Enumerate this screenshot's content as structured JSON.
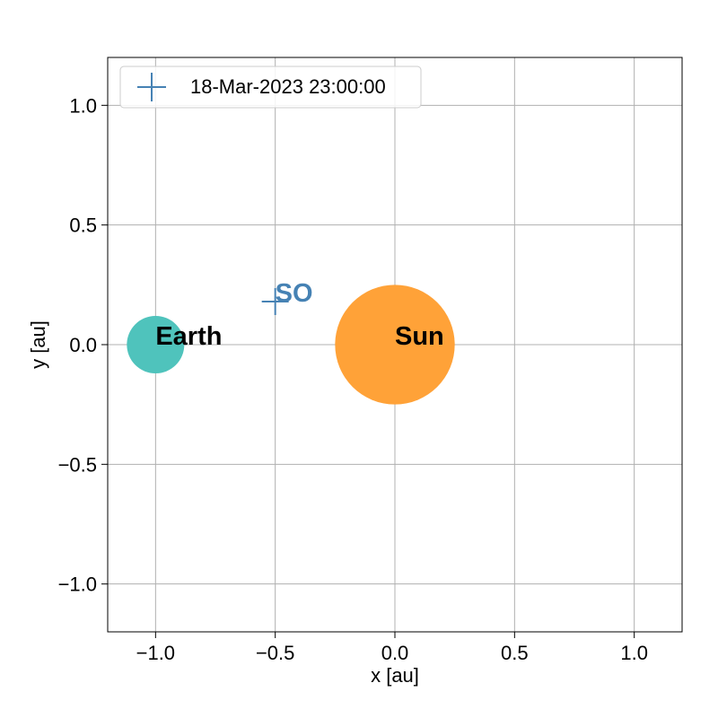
{
  "chart_data": {
    "type": "scatter",
    "xlabel": "x [au]",
    "ylabel": "y [au]",
    "xlim": [
      -1.2,
      1.2
    ],
    "ylim": [
      -1.2,
      1.2
    ],
    "xticks": [
      -1.0,
      -0.5,
      0.0,
      0.5,
      1.0
    ],
    "yticks": [
      -1.0,
      -0.5,
      0.0,
      0.5,
      1.0
    ],
    "xtick_labels": [
      "−1.0",
      "−0.5",
      "0.0",
      "0.5",
      "1.0"
    ],
    "ytick_labels": [
      "−1.0",
      "−0.5",
      "0.0",
      "0.5",
      "1.0"
    ],
    "grid": true,
    "legend": {
      "location": "upper left",
      "entries": [
        "18-Mar-2023 23:00:00"
      ]
    },
    "bodies": [
      {
        "name": "Sun",
        "x": 0.0,
        "y": 0.0,
        "radius": 0.25,
        "color": "#ffa238"
      },
      {
        "name": "Earth",
        "x": -1.0,
        "y": 0.0,
        "radius": 0.12,
        "color": "#4fc3bc"
      }
    ],
    "series": [
      {
        "name": "18-Mar-2023 23:00:00",
        "marker": "plus",
        "color": "#4682b4",
        "points": [
          {
            "label": "SO",
            "x": -0.5,
            "y": 0.18
          }
        ]
      }
    ]
  }
}
